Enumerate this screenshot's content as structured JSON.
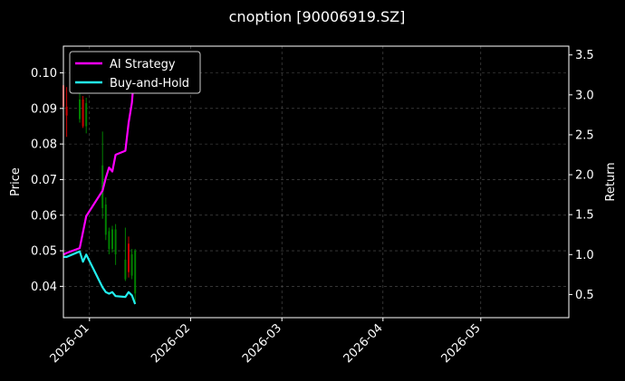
{
  "chart_data": {
    "type": "line",
    "title": "cnoption [90006919.SZ]",
    "xlabel": "",
    "ylabel": "Price",
    "y2label": "Return",
    "grid": true,
    "legend": "top-left",
    "xlim": [
      "2025-12-24",
      "2026-05-28"
    ],
    "ylim": [
      0.0312,
      0.1075
    ],
    "y2lim": [
      0.21,
      3.61
    ],
    "x_ticks": [
      "2026-01",
      "2026-02",
      "2026-03",
      "2026-04",
      "2026-05"
    ],
    "y_ticks": [
      0.04,
      0.05,
      0.06,
      0.07,
      0.08,
      0.09,
      0.1
    ],
    "y2_ticks": [
      0.5,
      1.0,
      1.5,
      2.0,
      2.5,
      3.0,
      3.5
    ],
    "colors": {
      "background": "#000000",
      "grid": "#555555",
      "up_candle": "#008000",
      "down_candle": "#cc0000",
      "strategy": "#ff00ff",
      "buyhold": "#22eeee"
    },
    "candles": [
      {
        "date": "2025-12-24",
        "open": 0.0965,
        "close": 0.0905,
        "high": 0.0975,
        "low": 0.089
      },
      {
        "date": "2025-12-25",
        "open": 0.0905,
        "close": 0.088,
        "high": 0.096,
        "low": 0.082
      },
      {
        "date": "2025-12-29",
        "open": 0.087,
        "close": 0.0925,
        "high": 0.0945,
        "low": 0.086
      },
      {
        "date": "2025-12-30",
        "open": 0.0925,
        "close": 0.085,
        "high": 0.0935,
        "low": 0.0845
      },
      {
        "date": "2025-12-31",
        "open": 0.085,
        "close": 0.0915,
        "high": 0.093,
        "low": 0.083
      },
      {
        "date": "2026-01-05",
        "open": 0.062,
        "close": 0.074,
        "high": 0.0835,
        "low": 0.059
      },
      {
        "date": "2026-01-06",
        "open": 0.0545,
        "close": 0.063,
        "high": 0.065,
        "low": 0.053
      },
      {
        "date": "2026-01-07",
        "open": 0.0505,
        "close": 0.0555,
        "high": 0.0565,
        "low": 0.049
      },
      {
        "date": "2026-01-08",
        "open": 0.0505,
        "close": 0.056,
        "high": 0.057,
        "low": 0.0495
      },
      {
        "date": "2026-01-09",
        "open": 0.049,
        "close": 0.056,
        "high": 0.0575,
        "low": 0.046
      },
      {
        "date": "2026-01-12",
        "open": 0.042,
        "close": 0.0475,
        "high": 0.0565,
        "low": 0.0415
      },
      {
        "date": "2026-01-13",
        "open": 0.052,
        "close": 0.044,
        "high": 0.054,
        "low": 0.0425
      },
      {
        "date": "2026-01-14",
        "open": 0.043,
        "close": 0.049,
        "high": 0.0505,
        "low": 0.042
      },
      {
        "date": "2026-01-15",
        "open": 0.038,
        "close": 0.05,
        "high": 0.0505,
        "low": 0.0355
      }
    ],
    "series": [
      {
        "name": "AI Strategy",
        "axis": "right",
        "x": [
          "2025-12-24",
          "2025-12-25",
          "2025-12-29",
          "2025-12-31",
          "2026-01-05",
          "2026-01-06",
          "2026-01-07",
          "2026-01-08",
          "2026-01-09",
          "2026-01-12",
          "2026-01-13",
          "2026-01-14",
          "2026-01-15"
        ],
        "values": [
          1.0,
          1.02,
          1.08,
          1.48,
          1.8,
          1.96,
          2.09,
          2.04,
          2.25,
          2.3,
          2.65,
          2.9,
          3.4
        ]
      },
      {
        "name": "Buy-and-Hold",
        "axis": "right",
        "x": [
          "2025-12-24",
          "2025-12-25",
          "2025-12-29",
          "2025-12-30",
          "2025-12-31",
          "2026-01-05",
          "2026-01-06",
          "2026-01-07",
          "2026-01-08",
          "2026-01-09",
          "2026-01-12",
          "2026-01-13",
          "2026-01-14",
          "2026-01-15"
        ],
        "values": [
          0.97,
          0.97,
          1.04,
          0.91,
          1.0,
          0.59,
          0.53,
          0.51,
          0.53,
          0.48,
          0.47,
          0.53,
          0.49,
          0.38
        ]
      }
    ]
  }
}
